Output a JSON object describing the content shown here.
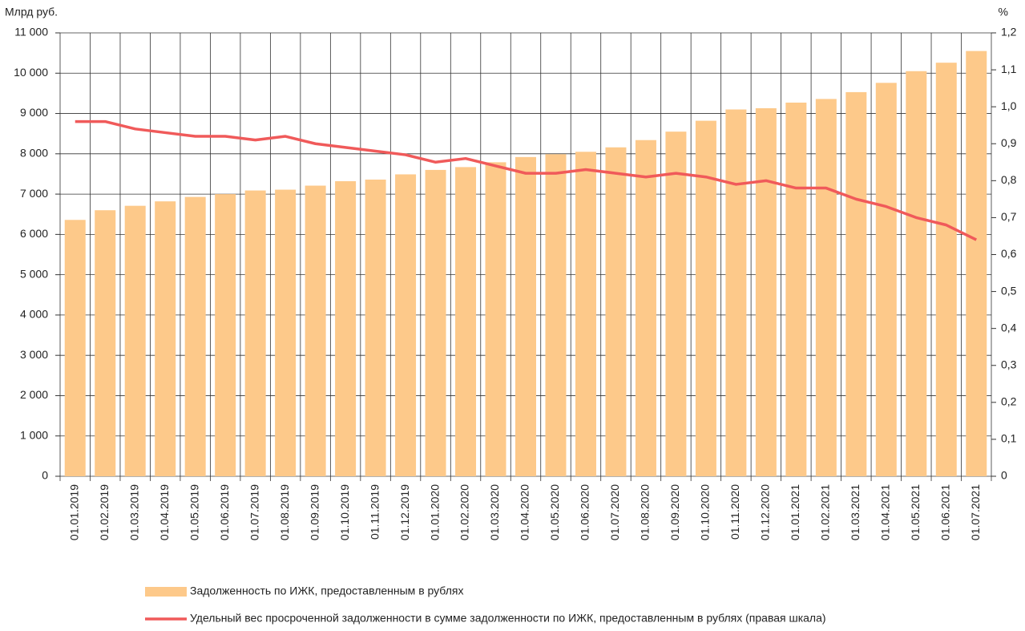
{
  "chart_data": {
    "type": "bar-line",
    "y_label": "Млрд руб.",
    "y2_label": "%",
    "categories": [
      "01.01.2019",
      "01.02.2019",
      "01.03.2019",
      "01.04.2019",
      "01.05.2019",
      "01.06.2019",
      "01.07.2019",
      "01.08.2019",
      "01.09.2019",
      "01.10.2019",
      "01.11.2019",
      "01.12.2019",
      "01.01.2020",
      "01.02.2020",
      "01.03.2020",
      "01.04.2020",
      "01.05.2020",
      "01.06.2020",
      "01.07.2020",
      "01.08.2020",
      "01.09.2020",
      "01.10.2020",
      "01.11.2020",
      "01.12.2020",
      "01.01.2021",
      "01.02.2021",
      "01.03.2021",
      "01.04.2021",
      "01.05.2021",
      "01.06.2021",
      "01.07.2021"
    ],
    "series": [
      {
        "name": "Задолженность по ИЖК, предоставленным в рублях",
        "type": "bar",
        "color": "#fdc98a",
        "values": [
          6360,
          6600,
          6710,
          6820,
          6930,
          7000,
          7090,
          7110,
          7210,
          7320,
          7360,
          7490,
          7600,
          7670,
          7790,
          7920,
          7990,
          8050,
          8160,
          8340,
          8550,
          8820,
          9100,
          9130,
          9270,
          9360,
          9530,
          9760,
          10050,
          10260,
          10550
        ]
      },
      {
        "name": "Удельный вес просроченной задолженности в сумме задолженности по ИЖК, предоставленным в рублях (правая шкала)",
        "type": "line",
        "axis": "y2",
        "color": "#f05a5a",
        "values": [
          0.96,
          0.96,
          0.94,
          0.93,
          0.92,
          0.92,
          0.91,
          0.92,
          0.9,
          0.89,
          0.88,
          0.87,
          0.85,
          0.86,
          0.84,
          0.82,
          0.82,
          0.83,
          0.82,
          0.81,
          0.82,
          0.81,
          0.79,
          0.8,
          0.78,
          0.78,
          0.75,
          0.73,
          0.7,
          0.68,
          0.64
        ]
      }
    ],
    "ylim": [
      0,
      11000
    ],
    "yticks": [
      0,
      {
        "value": 1000,
        "label": "1 000"
      },
      {
        "value": 2000,
        "label": "2 000"
      },
      {
        "value": 3000,
        "label": "3 000"
      },
      {
        "value": 4000,
        "label": "4 000"
      },
      {
        "value": 5000,
        "label": "5 000"
      },
      {
        "value": 6000,
        "label": "6 000"
      },
      {
        "value": 7000,
        "label": "7 000"
      },
      {
        "value": 8000,
        "label": "8 000"
      },
      {
        "value": 9000,
        "label": "9 000"
      },
      {
        "value": 10000,
        "label": "10 000"
      },
      {
        "value": 11000,
        "label": "11 000"
      }
    ],
    "y2lim": [
      0,
      1.2
    ],
    "y2ticks": [
      0,
      {
        "value": 0.1,
        "label": "0,1"
      },
      {
        "value": 0.2,
        "label": "0,2"
      },
      {
        "value": 0.3,
        "label": "0,3"
      },
      {
        "value": 0.4,
        "label": "0,4"
      },
      {
        "value": 0.5,
        "label": "0,5"
      },
      {
        "value": 0.6,
        "label": "0,6"
      },
      {
        "value": 0.7,
        "label": "0,7"
      },
      {
        "value": 0.8,
        "label": "0,8"
      },
      {
        "value": 0.9,
        "label": "0,9"
      },
      {
        "value": 1,
        "label": "1,0"
      },
      {
        "value": 1.1,
        "label": "1,1"
      },
      {
        "value": 1.2,
        "label": "1,2"
      }
    ],
    "grid": true
  }
}
